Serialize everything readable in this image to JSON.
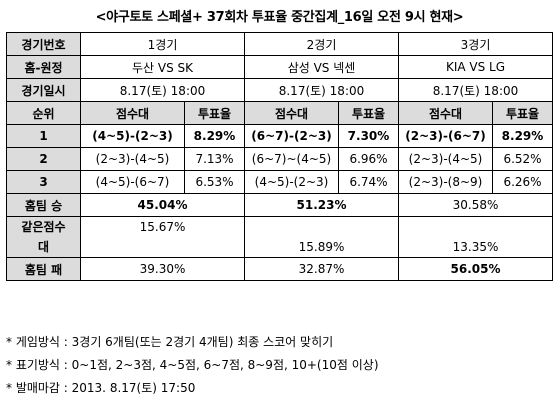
{
  "title": "<야구토토 스페셜+ 37회차 투표율 중간집계_16일 오전 9시 현재>",
  "labels": {
    "game_no": "경기번호",
    "home_away": "홈-원정",
    "date": "경기일시",
    "rank": "순위",
    "home_win": "홈팀 승",
    "same_score_1": "같은점수",
    "same_score_2": "대",
    "home_lose": "홈팀 패",
    "score_range": "점수대",
    "vote_rate": "투표율"
  },
  "games": [
    {
      "game": "1경기",
      "matchup": "두산 VS SK",
      "datetime": "8.17(토) 18:00",
      "ranks": [
        {
          "score": "(4~5)-(2~3)",
          "rate": "8.29%"
        },
        {
          "score": "(2~3)-(4~5)",
          "rate": "7.13%"
        },
        {
          "score": "(4~5)-(6~7)",
          "rate": "6.53%"
        }
      ],
      "home_win": "45.04%",
      "same": "15.67%",
      "home_lose": "39.30%"
    },
    {
      "game": "2경기",
      "matchup": "삼성 VS 넥센",
      "datetime": "8.17(토) 18:00",
      "ranks": [
        {
          "score": "(6~7)-(2~3)",
          "rate": "7.30%"
        },
        {
          "score": "(6~7)~(4~5)",
          "rate": "6.96%"
        },
        {
          "score": "(4~5)-(2~3)",
          "rate": "6.74%"
        }
      ],
      "home_win": "51.23%",
      "same": "15.89%",
      "home_lose": "32.87%"
    },
    {
      "game": "3경기",
      "matchup": "KIA VS LG",
      "datetime": "8.17(토) 18:00",
      "ranks": [
        {
          "score": "(2~3)-(6~7)",
          "rate": "8.29%"
        },
        {
          "score": "(2~3)-(4~5)",
          "rate": "6.52%"
        },
        {
          "score": "(2~3)-(8~9)",
          "rate": "6.26%"
        }
      ],
      "home_win": "30.58%",
      "same": "13.35%",
      "home_lose": "56.05%"
    }
  ],
  "rank_numbers": [
    "1",
    "2",
    "3"
  ],
  "notes": [
    "* 게임방식 : 3경기 6개팀(또는 2경기 4개팀) 최종 스코어 맞히기",
    "* 표기방식 : 0~1점, 2~3점, 4~5점, 6~7점, 8~9점, 10+(10점 이상)",
    "* 발매마감 : 2013. 8.17(토) 17:50"
  ]
}
